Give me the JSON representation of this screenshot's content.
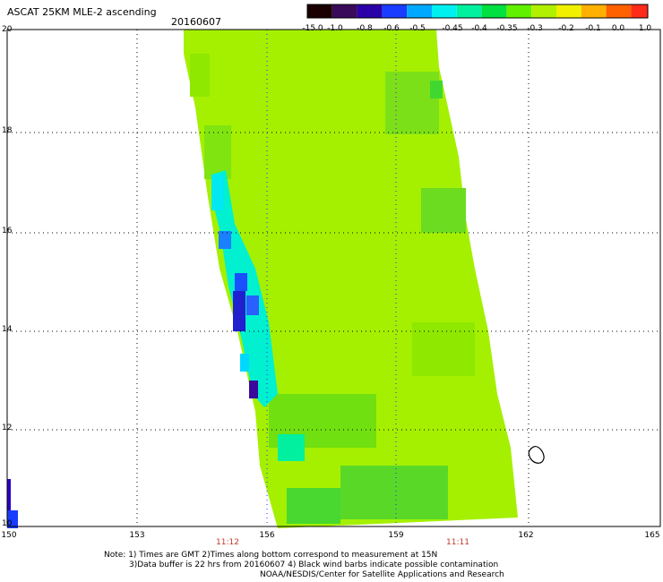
{
  "header": {
    "title": "ASCAT 25KM MLE-2 ascending",
    "date": "20160607"
  },
  "colorbar": {
    "ticks": [
      "-15.0",
      "-1.0",
      "-0.8",
      "-0.6",
      "-0.5",
      "-0.45",
      "-0.4",
      "-0.35",
      "-0.3",
      "-0.2",
      "-0.1",
      "0.0",
      "1.0"
    ],
    "colors": [
      "#1a0000",
      "#3a0a5a",
      "#2a00a8",
      "#1a3cff",
      "#00a8ff",
      "#00f0f0",
      "#00f0a0",
      "#00e040",
      "#60f000",
      "#b0f000",
      "#f0f000",
      "#ffb000",
      "#ff6000",
      "#ff2a1a"
    ]
  },
  "axes": {
    "lat_ticks": [
      "20",
      "18",
      "16",
      "14",
      "12",
      "10"
    ],
    "lon_ticks": [
      "150",
      "153",
      "156",
      "159",
      "162",
      "165"
    ],
    "time_labels": [
      "11:12",
      "11:11"
    ]
  },
  "notes": {
    "line1": "Note: 1) Times are GMT 2)Times along bottom correspond to measurement at 15N",
    "line2": "3)Data buffer is 22 hrs from 20160607 4) Black wind barbs indicate possible contamination",
    "line3": "NOAA/NESDIS/Center for Satellite Applications and Research"
  }
}
